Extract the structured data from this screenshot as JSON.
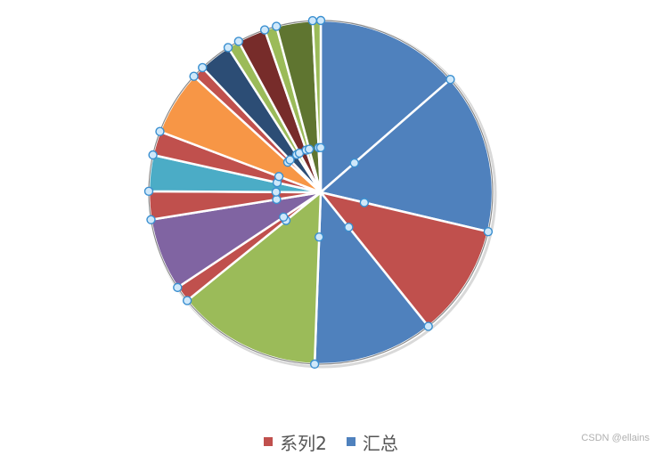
{
  "chart_data": {
    "type": "pie",
    "title": "",
    "series": [
      {
        "name": "汇总",
        "color": "#4F81BD",
        "values": [
          18,
          20,
          14,
          15,
          18
        ]
      },
      {
        "name": "系列2",
        "color": "#C0504D",
        "values": [
          2,
          9,
          3.5,
          4.5,
          3,
          8,
          1.5,
          4,
          1.5,
          3.5,
          1.5,
          4.5,
          1
        ]
      }
    ],
    "slices": [
      {
        "series": "汇总",
        "value": 18,
        "color": "#4F81BD"
      },
      {
        "series": "汇总",
        "value": 20,
        "color": "#4F81BD"
      },
      {
        "series": "汇总",
        "value": 14,
        "color": "#C0504D"
      },
      {
        "series": "汇总",
        "value": 15,
        "color": "#4F81BD"
      },
      {
        "series": "汇总",
        "value": 18,
        "color": "#9BBB59"
      },
      {
        "series": "系列2",
        "value": 2,
        "color": "#C0504D"
      },
      {
        "series": "系列2",
        "value": 9,
        "color": "#8064A2"
      },
      {
        "series": "系列2",
        "value": 3.5,
        "color": "#C0504D"
      },
      {
        "series": "系列2",
        "value": 4.5,
        "color": "#4BACC6"
      },
      {
        "series": "系列2",
        "value": 3,
        "color": "#C0504D"
      },
      {
        "series": "系列2",
        "value": 8,
        "color": "#F79646"
      },
      {
        "series": "系列2",
        "value": 1.5,
        "color": "#C0504D"
      },
      {
        "series": "系列2",
        "value": 4,
        "color": "#2C4D75"
      },
      {
        "series": "系列2",
        "value": 1.5,
        "color": "#9BBB59"
      },
      {
        "series": "系列2",
        "value": 3.5,
        "color": "#772C2A"
      },
      {
        "series": "系列2",
        "value": 1.5,
        "color": "#9BBB59"
      },
      {
        "series": "系列2",
        "value": 4.5,
        "color": "#5F7530"
      },
      {
        "series": "系列2",
        "value": 1,
        "color": "#9BBB59"
      }
    ],
    "legend": {
      "position": "bottom",
      "entries": [
        {
          "label": "系列2",
          "color": "#C0504D"
        },
        {
          "label": "汇总",
          "color": "#4F81BD"
        }
      ]
    }
  },
  "watermark": "CSDN @ellains"
}
